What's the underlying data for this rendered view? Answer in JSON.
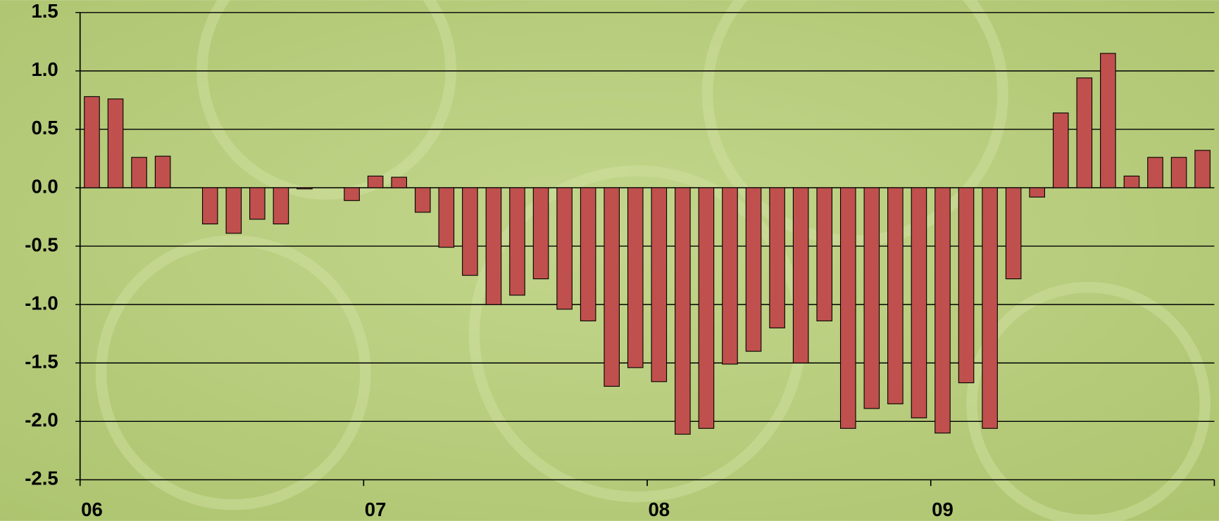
{
  "chart_data": {
    "type": "bar",
    "categories": [
      "06",
      null,
      null,
      null,
      null,
      null,
      null,
      null,
      null,
      null,
      null,
      null,
      "07",
      null,
      null,
      null,
      null,
      null,
      null,
      null,
      null,
      null,
      null,
      null,
      "08",
      null,
      null,
      null,
      null,
      null,
      null,
      null,
      null,
      null,
      null,
      null,
      "09",
      null,
      null,
      null,
      null,
      null,
      null,
      null,
      null,
      null,
      null,
      null
    ],
    "values": [
      0.78,
      0.76,
      0.26,
      0.27,
      0,
      -0.31,
      -0.39,
      -0.27,
      -0.31,
      -0.01,
      0,
      -0.11,
      0.1,
      0.09,
      -0.21,
      -0.51,
      -0.75,
      -1.0,
      -0.92,
      -0.78,
      -1.04,
      -1.14,
      -1.7,
      -1.54,
      -1.66,
      -2.11,
      -2.06,
      -1.51,
      -1.4,
      -1.2,
      -1.5,
      -1.14,
      -2.06,
      -1.89,
      -1.85,
      -1.97,
      -2.1,
      -1.67,
      -2.06,
      -0.78,
      -0.08,
      0.64,
      0.94,
      1.15,
      0.1,
      0.26,
      0.26,
      0.32
    ],
    "color": "#c0504d",
    "ylim": [
      -2.5,
      1.5
    ],
    "yticks": [
      -2.5,
      {
        "value": -2,
        "label": "-2.0"
      },
      -1.5,
      {
        "value": -1,
        "label": "-1.0"
      },
      -0.5,
      {
        "value": 0,
        "label": "0.0"
      },
      0.5,
      {
        "value": 1,
        "label": "1.0"
      },
      1.5
    ],
    "grid": true
  }
}
